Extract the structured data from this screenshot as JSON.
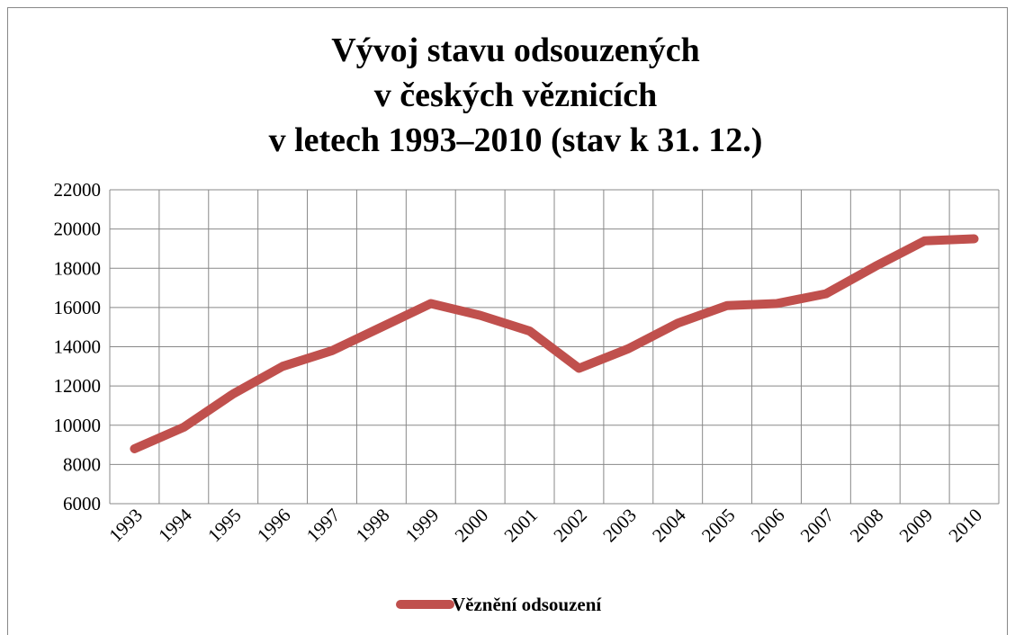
{
  "chart_data": {
    "type": "line",
    "title": [
      "Vývoj stavu odsouzených",
      "v českých věznicích",
      "v letech 1993–2010 (stav k 31. 12.)"
    ],
    "categories": [
      "1993",
      "1994",
      "1995",
      "1996",
      "1997",
      "1998",
      "1999",
      "2000",
      "2001",
      "2002",
      "2003",
      "2004",
      "2005",
      "2006",
      "2007",
      "2008",
      "2009",
      "2010"
    ],
    "series": [
      {
        "name": "Věznění odsouzení",
        "color": "#c0504d",
        "values": [
          8800,
          9900,
          11600,
          13000,
          13800,
          15000,
          16200,
          15600,
          14800,
          12900,
          13900,
          15200,
          16100,
          16200,
          16700,
          18100,
          19400,
          19500
        ]
      }
    ],
    "ylim": [
      6000,
      22000
    ],
    "yticks": [
      6000,
      8000,
      10000,
      12000,
      14000,
      16000,
      18000,
      20000,
      22000
    ],
    "grid": true,
    "legend": "bottom"
  }
}
